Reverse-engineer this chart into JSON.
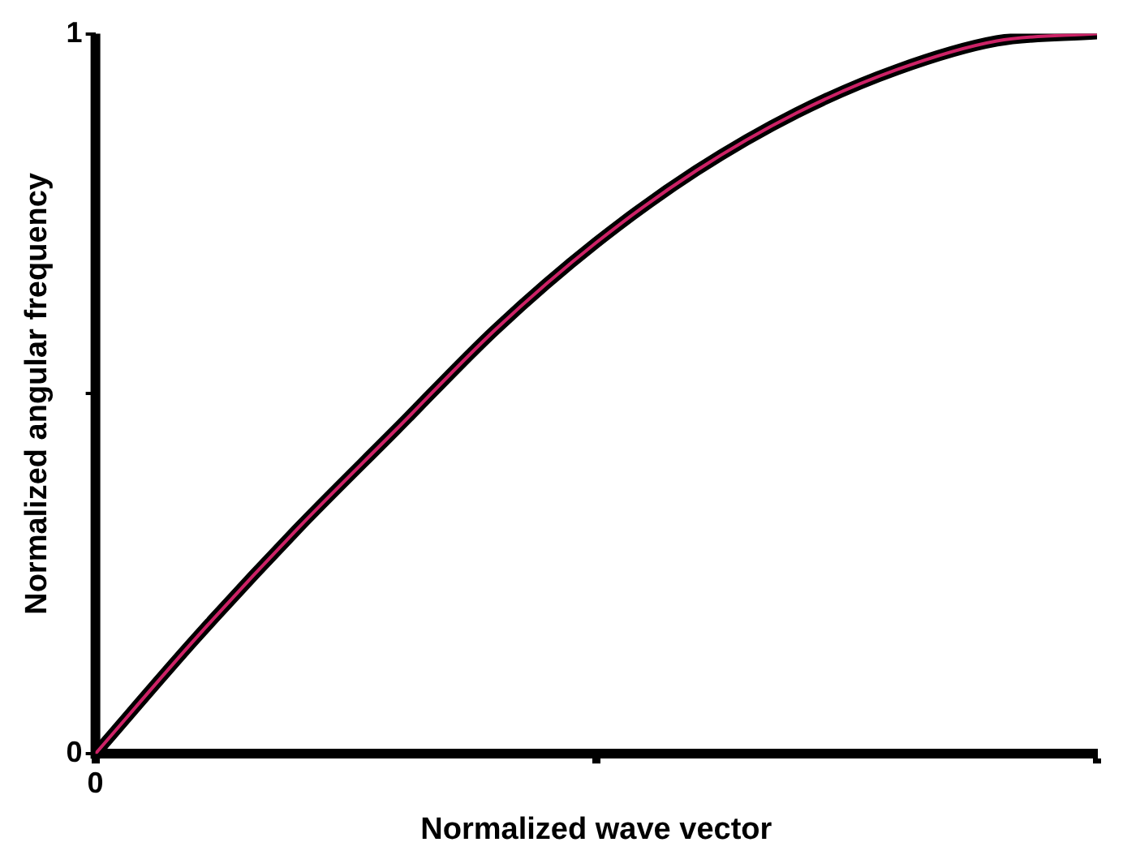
{
  "chart_data": {
    "type": "line",
    "xlabel": "Normalized wave vector",
    "ylabel": "Normalized angular frequency",
    "categories": [
      "0",
      null,
      null,
      null,
      null,
      null,
      null,
      null,
      null,
      null,
      null
    ],
    "series": [
      {
        "color": "#000000",
        "values": [
          0,
          0.16,
          0.31,
          0.45,
          0.59,
          0.71,
          0.81,
          0.89,
          0.95,
          0.99,
          1
        ]
      },
      {
        "color": "#cc2266",
        "values": [
          0,
          0.16,
          0.31,
          0.45,
          0.59,
          0.71,
          0.81,
          0.89,
          0.95,
          0.99,
          1
        ]
      }
    ],
    "ylim": [
      0,
      1
    ],
    "yticks": [
      0,
      {
        "value": 0.5,
        "label": null
      },
      1
    ],
    "grid": false,
    "legend": false,
    "marker": "none",
    "line_style": "solid"
  }
}
